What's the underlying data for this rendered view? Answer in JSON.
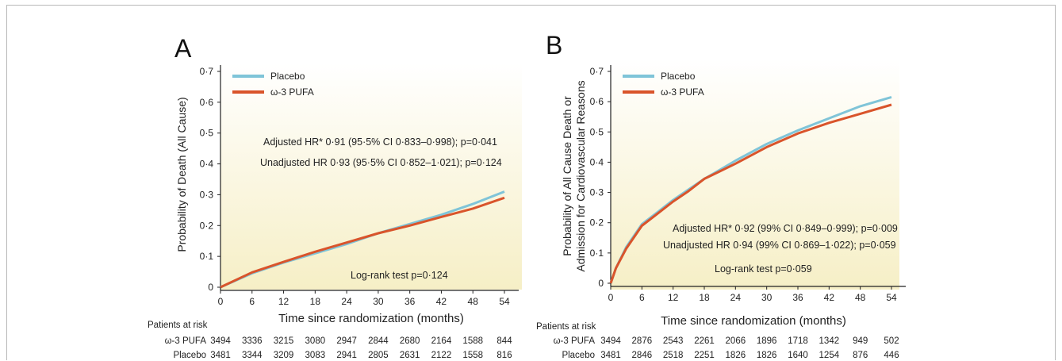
{
  "chart_data": [
    {
      "type": "line",
      "panel_label": "A",
      "xlabel": "Time since randomization (months)",
      "ylabel": "Probability of Death (All Cause)",
      "xlim": [
        0,
        54
      ],
      "ylim": [
        0,
        0.7
      ],
      "x_ticks": [
        "0",
        "6",
        "12",
        "18",
        "24",
        "30",
        "36",
        "42",
        "48",
        "54"
      ],
      "y_ticks": [
        "0",
        "0·1",
        "0·2",
        "0·3",
        "0·4",
        "0·5",
        "0·6",
        "0·7"
      ],
      "legend": [
        "Placebo",
        "ω-3 PUFA"
      ],
      "annotations": [
        "Adjusted HR* 0·91 (95·5% CI 0·833–0·998); p=0·041",
        "Unadjusted HR 0·93 (95·5% CI 0·852–1·021); p=0·124",
        "Log-rank test p=0·124"
      ],
      "series": [
        {
          "name": "Placebo",
          "color": "#7fc4d8",
          "x": [
            0,
            6,
            12,
            18,
            24,
            30,
            36,
            42,
            48,
            54
          ],
          "y": [
            0,
            0.045,
            0.08,
            0.11,
            0.14,
            0.175,
            0.205,
            0.235,
            0.27,
            0.31
          ]
        },
        {
          "name": "ω-3 PUFA",
          "color": "#d9542b",
          "x": [
            0,
            6,
            12,
            18,
            24,
            30,
            36,
            42,
            48,
            54
          ],
          "y": [
            0,
            0.048,
            0.082,
            0.115,
            0.145,
            0.175,
            0.2,
            0.228,
            0.255,
            0.29
          ]
        }
      ],
      "risk_table": {
        "title": "Patients at risk",
        "rows": [
          {
            "label": "ω-3 PUFA",
            "values": [
              "3494",
              "3336",
              "3215",
              "3080",
              "2947",
              "2844",
              "2680",
              "2164",
              "1588",
              "844"
            ]
          },
          {
            "label": "Placebo",
            "values": [
              "3481",
              "3344",
              "3209",
              "3083",
              "2941",
              "2805",
              "2631",
              "2122",
              "1558",
              "816"
            ]
          }
        ]
      }
    },
    {
      "type": "line",
      "panel_label": "B",
      "xlabel": "Time since randomization (months)",
      "ylabel_lines": [
        "Probability of  All Cause Death or",
        "Admission for Cardiovascular Reasons"
      ],
      "xlim": [
        0,
        54
      ],
      "ylim": [
        0,
        0.7
      ],
      "x_ticks": [
        "0",
        "6",
        "12",
        "18",
        "24",
        "30",
        "36",
        "42",
        "48",
        "54"
      ],
      "y_ticks": [
        "0",
        "0·1",
        "0·2",
        "0·3",
        "0·4",
        "0·5",
        "0·6",
        "0·7"
      ],
      "legend": [
        "Placebo",
        "ω-3 PUFA"
      ],
      "annotations": [
        "Adjusted HR* 0·92 (99% CI 0·849–0·999); p=0·009",
        "Unadjusted HR 0·94 (99% CI 0·869–1·022); p=0·059",
        "Log-rank test p=0·059"
      ],
      "series": [
        {
          "name": "Placebo",
          "color": "#7fc4d8",
          "x": [
            0,
            1,
            3,
            6,
            9,
            12,
            15,
            18,
            21,
            24,
            30,
            36,
            42,
            48,
            54
          ],
          "y": [
            0,
            0.05,
            0.12,
            0.195,
            0.235,
            0.275,
            0.31,
            0.345,
            0.375,
            0.405,
            0.46,
            0.505,
            0.545,
            0.585,
            0.615
          ]
        },
        {
          "name": "ω-3 PUFA",
          "color": "#d9542b",
          "x": [
            0,
            1,
            3,
            6,
            9,
            12,
            15,
            18,
            21,
            24,
            30,
            36,
            42,
            48,
            54
          ],
          "y": [
            0,
            0.05,
            0.115,
            0.19,
            0.23,
            0.27,
            0.305,
            0.345,
            0.37,
            0.395,
            0.45,
            0.495,
            0.53,
            0.56,
            0.59
          ]
        }
      ],
      "risk_table": {
        "title": "Patients at risk",
        "rows": [
          {
            "label": "ω-3 PUFA",
            "values": [
              "3494",
              "2876",
              "2543",
              "2261",
              "2066",
              "1896",
              "1718",
              "1342",
              "949",
              "502"
            ]
          },
          {
            "label": "Placebo",
            "values": [
              "3481",
              "2846",
              "2518",
              "2251",
              "1826",
              "1826",
              "1640",
              "1254",
              "876",
              "446"
            ]
          }
        ]
      }
    }
  ]
}
